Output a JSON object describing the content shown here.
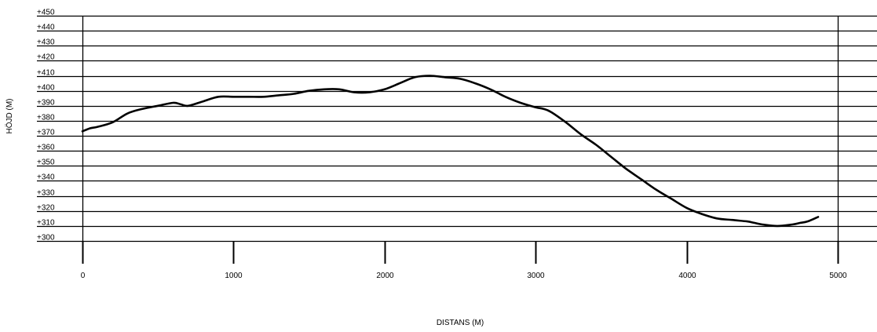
{
  "chart_data": {
    "type": "line",
    "xlabel": "DISTANS (M)",
    "ylabel": "HÖJD (M)",
    "xlim": [
      0,
      5000
    ],
    "ylim": [
      300,
      450
    ],
    "x_ticks": [
      0,
      1000,
      2000,
      3000,
      4000,
      5000
    ],
    "x_tick_labels": [
      "0",
      "1000",
      "2000",
      "3000",
      "4000",
      "5000"
    ],
    "y_ticks": [
      450,
      440,
      430,
      420,
      410,
      400,
      390,
      380,
      370,
      360,
      350,
      340,
      330,
      320,
      310,
      300
    ],
    "y_tick_labels": [
      "+450",
      "+440",
      "+430",
      "+420",
      "+410",
      "+400",
      "+390",
      "+380",
      "+370",
      "+360",
      "+350",
      "+340",
      "+330",
      "+320",
      "+310",
      "+300"
    ],
    "grid": true,
    "series": [
      {
        "x": [
          0,
          50,
          100,
          200,
          300,
          400,
          500,
          600,
          650,
          700,
          800,
          900,
          1000,
          1100,
          1200,
          1300,
          1400,
          1500,
          1600,
          1700,
          1800,
          1900,
          2000,
          2100,
          2200,
          2300,
          2400,
          2500,
          2600,
          2700,
          2800,
          2900,
          3000,
          3050,
          3100,
          3200,
          3300,
          3400,
          3500,
          3600,
          3700,
          3800,
          3900,
          4000,
          4100,
          4200,
          4300,
          4400,
          4450,
          4500,
          4600,
          4700,
          4750,
          4800,
          4870
        ],
        "y": [
          373,
          375,
          376,
          379,
          385,
          388,
          390,
          392,
          391,
          390,
          393,
          396,
          396,
          396,
          396,
          397,
          398,
          400,
          401,
          401,
          399,
          399,
          401,
          405,
          409,
          410,
          409,
          408,
          405,
          401,
          396,
          392,
          389,
          388,
          386,
          379,
          371,
          364,
          356,
          348,
          341,
          334,
          328,
          322,
          318,
          315,
          314,
          313,
          312,
          311,
          310,
          311,
          312,
          313,
          316
        ]
      }
    ]
  }
}
